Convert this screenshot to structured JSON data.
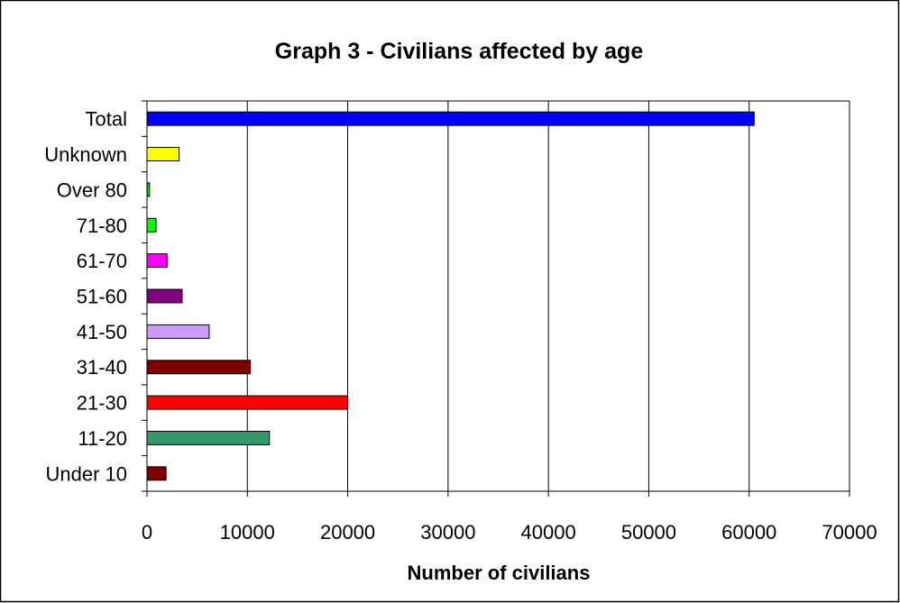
{
  "chart_data": {
    "type": "bar",
    "orientation": "horizontal",
    "title": "Graph 3 - Civilians affected by age",
    "xlabel": "Number of civilians",
    "ylabel": "",
    "xlim": [
      0,
      70000
    ],
    "x_ticks": [
      "0",
      "10000",
      "20000",
      "30000",
      "40000",
      "50000",
      "60000",
      "70000"
    ],
    "grid": "vertical",
    "legend": "none",
    "categories": [
      "Under 10",
      "11-20",
      "21-30",
      "31-40",
      "41-50",
      "51-60",
      "61-70",
      "71-80",
      "Over 80",
      "Unknown",
      "Total"
    ],
    "values": [
      1900,
      12200,
      20000,
      10300,
      6200,
      3500,
      2000,
      900,
      250,
      3200,
      60500
    ],
    "colors": [
      "#800000",
      "#339966",
      "#ff0000",
      "#800000",
      "#cc99ff",
      "#800080",
      "#ff00ff",
      "#00ff00",
      "#00cc00",
      "#ffff00",
      "#0000ff"
    ]
  }
}
